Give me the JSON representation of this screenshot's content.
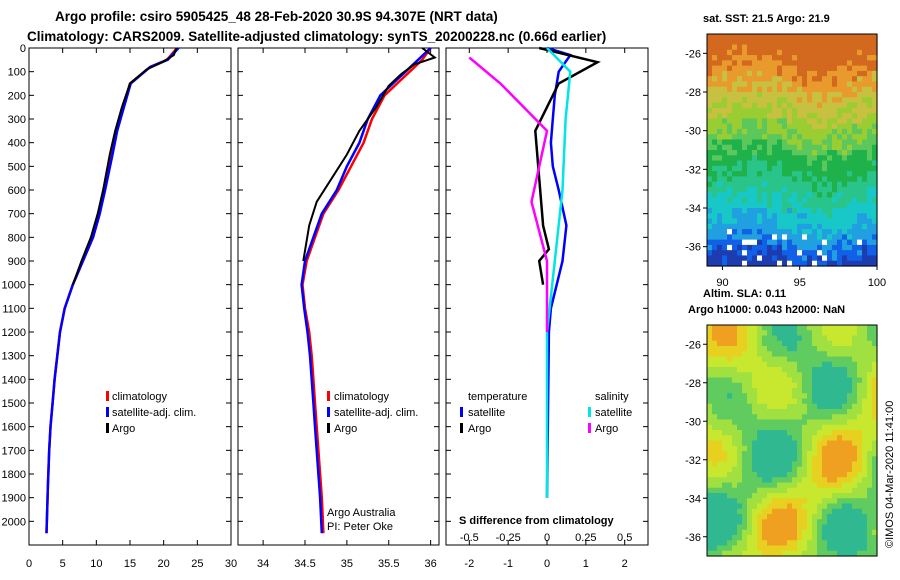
{
  "titles": {
    "line1": "Argo profile: csiro 5905425_48 28-Feb-2020 30.9S 94.307E (NRT data)",
    "line2": "Climatology: CARS2009. Satellite-adjusted climatology: synTS_20200228.nc (0.66d earlier)"
  },
  "colors": {
    "climatology": "#ff0000",
    "satellite": "#0000ff",
    "argo": "#000000",
    "salinity_satellite": "#00e5e5",
    "salinity_argo": "#ff00ff"
  },
  "legend_temp": {
    "clim": "climatology",
    "sat": "satellite-adj. clim.",
    "argo": "Argo"
  },
  "legend_sal": {
    "clim": "climatology",
    "sat": "satellite-adj. clim.",
    "argo": "Argo"
  },
  "legend_diff": {
    "temp_header": "temperature",
    "sal_header": "salinity",
    "temp_sat": "satellite",
    "temp_argo": "Argo",
    "sal_sat": "satellite",
    "sal_argo": "Argo"
  },
  "credits": {
    "line1": "Argo Australia",
    "line2": "PI: Peter Oke"
  },
  "diff_xlabel": "S difference from climatology",
  "map_sst": {
    "title": "sat. SST: 21.5 Argo: 21.9"
  },
  "map_sla": {
    "title1": "Altim. SLA: 0.11",
    "title2": "Argo h1000: 0.043 h2000: NaN"
  },
  "watermark": "©IMOS 04-Mar-2020 11:41:00",
  "chart_data": [
    {
      "type": "line",
      "name": "temperature-profile",
      "xlim": [
        0,
        30
      ],
      "ylim": [
        2100,
        0
      ],
      "xticks": [
        "0",
        "5",
        "10",
        "15",
        "20",
        "25",
        "30"
      ],
      "yticks": [
        "0",
        "100",
        "200",
        "300",
        "400",
        "500",
        "600",
        "700",
        "800",
        "900",
        "1000",
        "1100",
        "1200",
        "1300",
        "1400",
        "1500",
        "1600",
        "1700",
        "1800",
        "1900",
        "2000"
      ],
      "series": [
        {
          "name": "climatology",
          "x": [
            22.0,
            20.5,
            18.0,
            15.0,
            14.0,
            13.0,
            12.3,
            11.2,
            10.5,
            9.5,
            8.0,
            6.5,
            5.3,
            4.6,
            4.2,
            3.8,
            3.5,
            3.2,
            3.0,
            2.8,
            2.6
          ],
          "y": [
            0,
            50,
            80,
            150,
            250,
            350,
            450,
            600,
            700,
            800,
            900,
            1000,
            1100,
            1200,
            1300,
            1400,
            1500,
            1600,
            1700,
            1850,
            2050
          ]
        },
        {
          "name": "satellite-adj. clim.",
          "x": [
            22.2,
            20.6,
            18.0,
            15.1,
            14.1,
            13.1,
            12.4,
            11.3,
            10.5,
            9.5,
            8.0,
            6.5,
            5.3,
            4.6,
            4.2,
            3.8,
            3.5,
            3.2,
            3.0,
            2.8,
            2.6
          ],
          "y": [
            0,
            50,
            80,
            150,
            250,
            350,
            450,
            600,
            700,
            800,
            900,
            1000,
            1100,
            1200,
            1300,
            1400,
            1500,
            1600,
            1700,
            1850,
            2050
          ]
        },
        {
          "name": "Argo",
          "x": [
            21.9,
            21.5,
            19.8,
            17.5,
            15.0,
            13.8,
            12.8,
            12.0,
            11.0,
            10.2,
            9.2,
            7.8,
            6.5
          ],
          "y": [
            0,
            30,
            60,
            90,
            150,
            250,
            350,
            450,
            600,
            700,
            800,
            900,
            1000
          ]
        }
      ],
      "legend": "lower-right"
    },
    {
      "type": "line",
      "name": "salinity-profile",
      "xlim": [
        33.7,
        36.1
      ],
      "ylim": [
        2100,
        0
      ],
      "xticks": [
        "34",
        "34.5",
        "35",
        "35.5",
        "36"
      ],
      "series": [
        {
          "name": "climatology",
          "x": [
            36.0,
            35.9,
            35.75,
            35.6,
            35.45,
            35.3,
            35.2,
            35.05,
            34.9,
            34.72,
            34.62,
            34.52,
            34.47,
            34.5,
            34.55,
            34.58,
            34.6,
            34.62,
            34.64,
            34.66,
            34.68,
            34.7,
            34.72
          ],
          "y": [
            0,
            50,
            100,
            150,
            200,
            300,
            400,
            500,
            600,
            700,
            800,
            900,
            1000,
            1100,
            1200,
            1300,
            1400,
            1500,
            1600,
            1700,
            1800,
            1900,
            2050
          ]
        },
        {
          "name": "satellite-adj. clim.",
          "x": [
            36.0,
            35.85,
            35.7,
            35.55,
            35.4,
            35.25,
            35.15,
            35.0,
            34.88,
            34.7,
            34.6,
            34.5,
            34.46,
            34.49,
            34.53,
            34.56,
            34.58,
            34.6,
            34.62,
            34.64,
            34.66,
            34.68,
            34.7
          ],
          "y": [
            0,
            50,
            100,
            150,
            200,
            300,
            400,
            500,
            600,
            700,
            800,
            900,
            1000,
            1100,
            1200,
            1300,
            1400,
            1500,
            1600,
            1700,
            1800,
            1900,
            2050
          ]
        },
        {
          "name": "Argo",
          "x": [
            35.9,
            36.05,
            35.8,
            35.65,
            35.5,
            35.35,
            35.15,
            35.0,
            34.82,
            34.64,
            34.55,
            34.48
          ],
          "y": [
            0,
            40,
            70,
            110,
            160,
            250,
            350,
            450,
            550,
            650,
            750,
            900
          ]
        }
      ],
      "legend": "lower-right"
    },
    {
      "type": "line",
      "name": "difference-profile",
      "xlabel": "S difference from climatology",
      "xlim": [
        -2.6,
        2.6
      ],
      "ylim": [
        2100,
        0
      ],
      "xticks": [
        "-2",
        "-1",
        "0",
        "1",
        "2"
      ],
      "secondary_xticks": [
        "-0.5",
        "-0.25",
        "0",
        "0.25",
        "0.5"
      ],
      "series": [
        {
          "name": "temperature satellite",
          "x": [
            0.0,
            0.6,
            0.3,
            0.2,
            0.15,
            0.1,
            0.15,
            0.3,
            0.5,
            0.4,
            0.25,
            0.1,
            0.05,
            0.0
          ],
          "y": [
            0,
            30,
            100,
            200,
            300,
            400,
            500,
            600,
            750,
            900,
            1000,
            1100,
            1200,
            1900
          ]
        },
        {
          "name": "temperature Argo",
          "x": [
            -0.2,
            1.3,
            0.3,
            -0.3,
            -0.2,
            -0.1,
            0.05,
            -0.2,
            -0.1
          ],
          "y": [
            0,
            60,
            150,
            350,
            550,
            750,
            850,
            900,
            1000
          ]
        },
        {
          "name": "salinity satellite",
          "x": [
            0.0,
            0.15,
            0.12,
            0.1,
            0.05,
            0.0,
            0.0
          ],
          "y": [
            0,
            100,
            300,
            600,
            900,
            1200,
            1900
          ]
        },
        {
          "name": "salinity Argo",
          "x": [
            -0.5,
            -0.3,
            0.0,
            -0.1,
            0.0,
            0.0
          ],
          "y": [
            40,
            150,
            350,
            650,
            900,
            1200
          ]
        }
      ],
      "legend": "bottom"
    },
    {
      "type": "heatmap",
      "name": "sst-map",
      "title": "sat. SST: 21.5 Argo: 21.9",
      "xlim": [
        89,
        100
      ],
      "ylim": [
        -37,
        -25
      ],
      "xticks": [
        "90",
        "95",
        "100"
      ],
      "yticks": [
        "-26",
        "-28",
        "-30",
        "-32",
        "-34",
        "-36"
      ]
    },
    {
      "type": "heatmap",
      "name": "sla-map",
      "title": "Altim. SLA: 0.11",
      "subtitle": "Argo h1000: 0.043 h2000: NaN",
      "ylim": [
        -37,
        -25
      ],
      "yticks": [
        "-26",
        "-28",
        "-30",
        "-32",
        "-34",
        "-36"
      ]
    }
  ]
}
